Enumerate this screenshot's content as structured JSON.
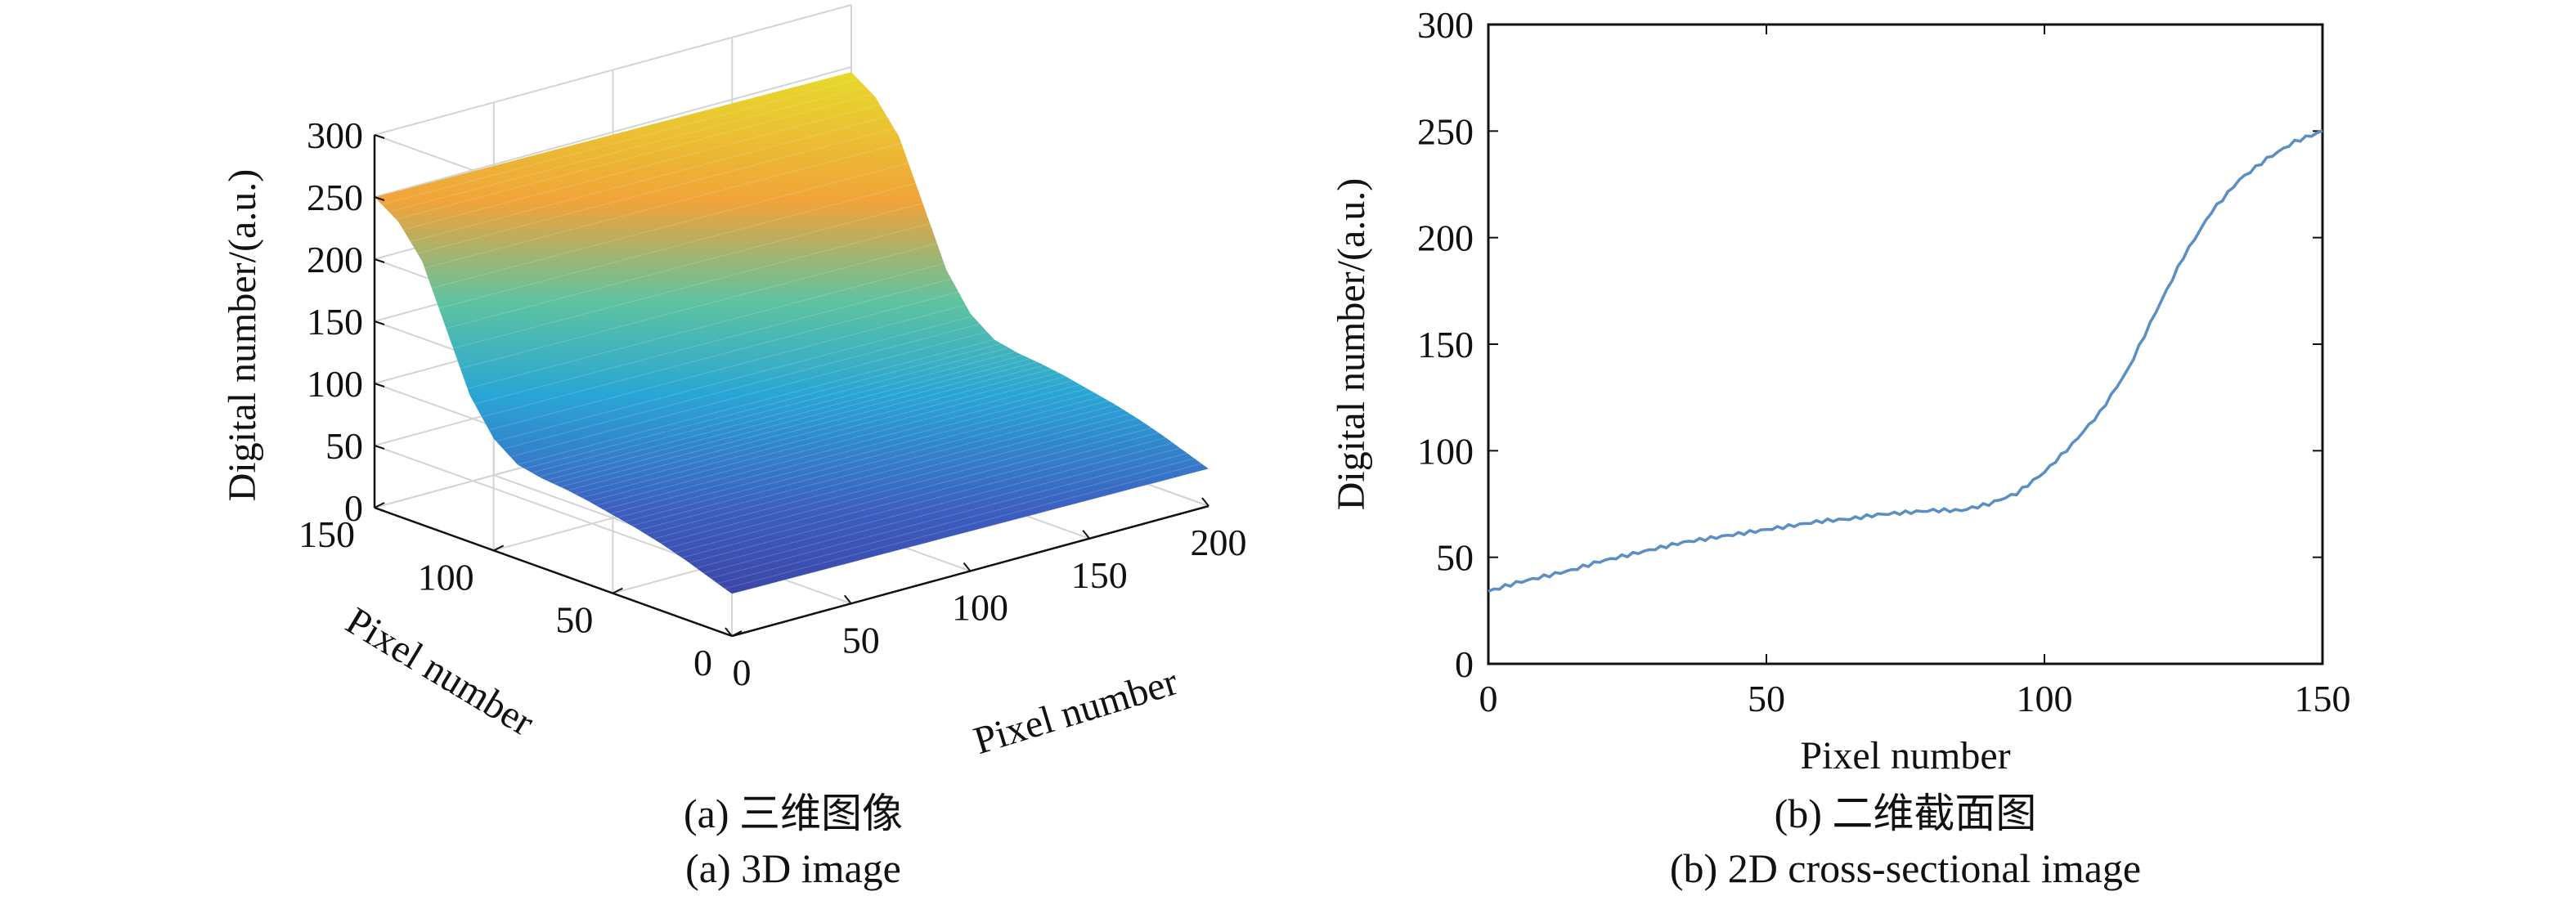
{
  "colors": {
    "line": "#5b8fc4",
    "axis": "#111111",
    "grid": "#d4d4d4"
  },
  "panel_a": {
    "caption_cn": "(a) 三维图像",
    "caption_en": "(a) 3D image",
    "zlabel": "Digital number/(a.u.)",
    "xlabel": "Pixel number",
    "ylabel": "Pixel number",
    "z_ticks": [
      "0",
      "50",
      "100",
      "150",
      "200",
      "250",
      "300"
    ],
    "x_ticks": [
      "0",
      "50",
      "100",
      "150",
      "200"
    ],
    "y_ticks": [
      "0",
      "50",
      "100",
      "150"
    ]
  },
  "panel_b": {
    "caption_cn": "(b) 二维截面图",
    "caption_en": "(b) 2D cross-sectional image",
    "xlabel": "Pixel number",
    "ylabel": "Digital number/(a.u.)",
    "x_ticks": [
      "0",
      "50",
      "100",
      "150"
    ],
    "y_ticks": [
      "0",
      "50",
      "100",
      "150",
      "200",
      "250",
      "300"
    ]
  },
  "chart_data": [
    {
      "type": "surface",
      "title": "",
      "xlabel": "Pixel number",
      "ylabel": "Pixel number",
      "zlabel": "Digital number/(a.u.)",
      "xlim": [
        0,
        200
      ],
      "ylim": [
        0,
        150
      ],
      "zlim": [
        0,
        300
      ],
      "colormap": "parula",
      "profile_along_y": {
        "y": [
          0,
          10,
          20,
          30,
          40,
          50,
          60,
          70,
          80,
          90,
          100,
          110,
          120,
          130,
          140,
          150
        ],
        "z": [
          34,
          41,
          48,
          54,
          59,
          63,
          67,
          70,
          72,
          76,
          90,
          118,
          165,
          212,
          237,
          250
        ]
      }
    },
    {
      "type": "line",
      "title": "",
      "xlabel": "Pixel number",
      "ylabel": "Digital number/(a.u.)",
      "xlim": [
        0,
        150
      ],
      "ylim": [
        0,
        300
      ],
      "grid": false,
      "series": [
        {
          "x": [
            0,
            5,
            10,
            15,
            20,
            25,
            30,
            35,
            40,
            45,
            50,
            55,
            60,
            65,
            70,
            75,
            80,
            85,
            90,
            95,
            100,
            105,
            110,
            115,
            120,
            125,
            130,
            135,
            140,
            145,
            150
          ],
          "y": [
            34,
            38,
            41,
            44,
            48,
            51,
            54,
            57,
            59,
            61,
            63,
            65,
            67,
            68,
            70,
            71,
            72,
            72,
            75,
            80,
            90,
            103,
            118,
            138,
            165,
            191,
            212,
            227,
            237,
            245,
            250
          ]
        }
      ]
    }
  ]
}
